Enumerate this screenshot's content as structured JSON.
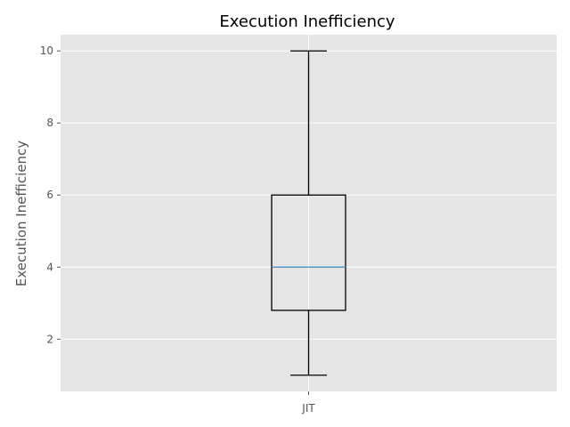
{
  "chart_data": {
    "type": "box",
    "title": "Execution Inefficiency",
    "xlabel": "",
    "ylabel": "Execution Inefficiency",
    "categories": [
      "JIT"
    ],
    "boxes": [
      {
        "category": "JIT",
        "whisker_low": 1,
        "q1": 2.8,
        "median": 4,
        "q3": 6,
        "whisker_high": 10
      }
    ],
    "yticks": [
      2,
      4,
      6,
      8,
      10
    ],
    "ytick_labels": [
      "2",
      "4",
      "6",
      "8",
      "10"
    ],
    "ylim": [
      0.55,
      10.45
    ],
    "grid": true,
    "colors": {
      "plot_background": "#e5e5e5",
      "grid": "#ffffff",
      "box_edge": "#000000",
      "median": "#348abd"
    }
  }
}
